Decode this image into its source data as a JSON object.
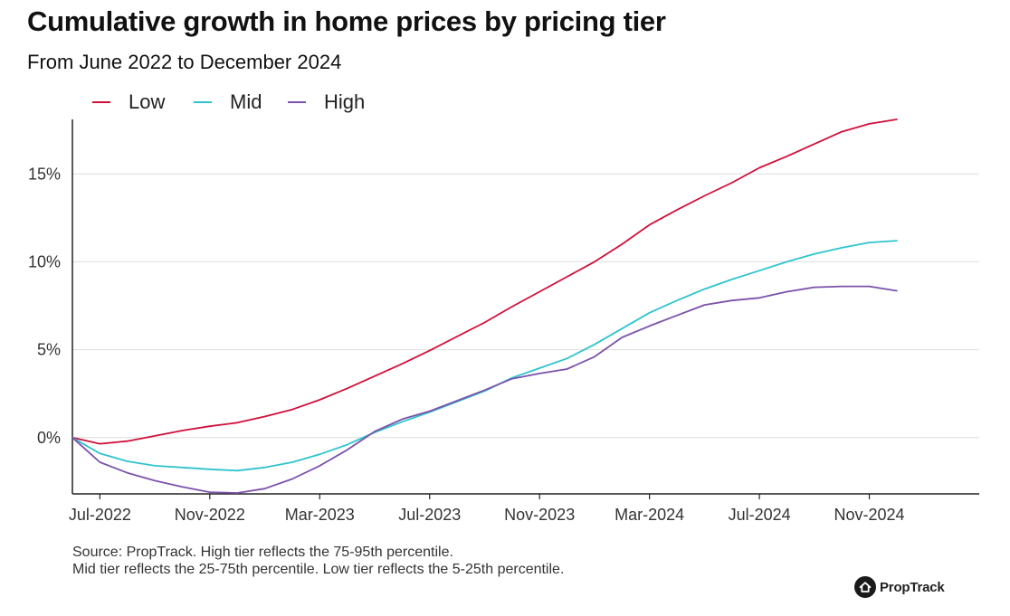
{
  "title": "Cumulative growth in home prices by pricing tier",
  "subtitle": "From June 2022 to December 2024",
  "source_line1": "Source: PropTrack. High tier reflects the 75-95th percentile.",
  "source_line2": "Mid tier reflects the 25-75th percentile. Low tier reflects the 5-25th percentile.",
  "brand": "PropTrack",
  "logo_icon": "house-icon",
  "colors": {
    "low": "#d0103a",
    "mid": "#2ec4cf",
    "high": "#7b52ab",
    "grid": "#dddddd",
    "axis": "#222222"
  },
  "chart_data": {
    "type": "line",
    "title": "Cumulative growth in home prices by pricing tier",
    "subtitle": "From June 2022 to December 2024",
    "xlabel": "",
    "ylabel": "",
    "x": [
      "2022-06",
      "2022-07",
      "2022-08",
      "2022-09",
      "2022-10",
      "2022-11",
      "2022-12",
      "2023-01",
      "2023-02",
      "2023-03",
      "2023-04",
      "2023-05",
      "2023-06",
      "2023-07",
      "2023-08",
      "2023-09",
      "2023-10",
      "2023-11",
      "2023-12",
      "2024-01",
      "2024-02",
      "2024-03",
      "2024-04",
      "2024-05",
      "2024-06",
      "2024-07",
      "2024-08",
      "2024-09",
      "2024-10",
      "2024-11",
      "2024-12"
    ],
    "x_ticks": [
      "Jul-2022",
      "Nov-2022",
      "Mar-2023",
      "Jul-2023",
      "Nov-2023",
      "Mar-2024",
      "Jul-2024",
      "Nov-2024"
    ],
    "x_tick_dates": [
      "2022-07",
      "2022-11",
      "2023-03",
      "2023-07",
      "2023-11",
      "2024-03",
      "2024-07",
      "2024-11"
    ],
    "xlim": [
      "2022-06",
      "2025-03"
    ],
    "y_ticks": [
      "0%",
      "5%",
      "10%",
      "15%"
    ],
    "y_tick_values": [
      0,
      5,
      10,
      15
    ],
    "ylim": [
      -3.2,
      18.1
    ],
    "y_unit": "%",
    "grid": "horizontal",
    "legend_position": "top-left",
    "series": [
      {
        "name": "Low",
        "color": "#d0103a",
        "values": [
          0,
          -0.35,
          -0.2,
          0.1,
          0.4,
          0.65,
          0.85,
          1.2,
          1.6,
          2.15,
          2.8,
          3.5,
          4.2,
          4.95,
          5.75,
          6.55,
          7.45,
          8.3,
          9.15,
          10.0,
          11.0,
          12.1,
          12.95,
          13.75,
          14.5,
          15.35,
          16.0,
          16.7,
          17.4,
          17.85,
          18.1
        ]
      },
      {
        "name": "Mid",
        "color": "#2ec4cf",
        "values": [
          0,
          -0.9,
          -1.35,
          -1.6,
          -1.7,
          -1.8,
          -1.88,
          -1.7,
          -1.4,
          -0.95,
          -0.4,
          0.3,
          0.9,
          1.45,
          2.05,
          2.65,
          3.4,
          3.95,
          4.5,
          5.3,
          6.2,
          7.1,
          7.8,
          8.45,
          9.0,
          9.5,
          10.0,
          10.45,
          10.8,
          11.1,
          11.2
        ]
      },
      {
        "name": "High",
        "color": "#7b52ab",
        "values": [
          0,
          -1.4,
          -2.0,
          -2.45,
          -2.8,
          -3.1,
          -3.15,
          -2.9,
          -2.35,
          -1.6,
          -0.7,
          0.35,
          1.05,
          1.5,
          2.1,
          2.7,
          3.35,
          3.65,
          3.9,
          4.6,
          5.7,
          6.35,
          6.95,
          7.55,
          7.8,
          7.95,
          8.3,
          8.55,
          8.6,
          8.6,
          8.35
        ]
      }
    ]
  }
}
